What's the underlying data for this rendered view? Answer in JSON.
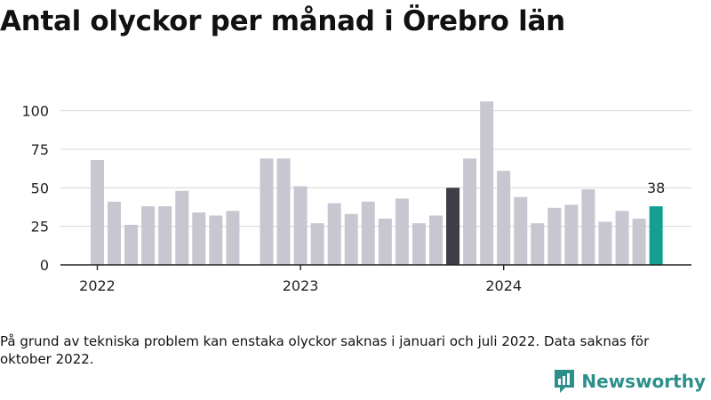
{
  "title": "Antal olyckor per månad i Örebro län",
  "footnote": "På grund av tekniska problem kan enstaka olyckor saknas i januari och juli 2022. Data saknas för oktober 2022.",
  "brand": {
    "name": "Newsworthy",
    "icon": "newsworthy-logo-icon"
  },
  "colors": {
    "default": "#c8c6d0",
    "highlight_dark": "#3e3d48",
    "highlight_latest": "#149f93",
    "grid": "#dddddd",
    "axis": "#222222"
  },
  "chart_data": {
    "type": "bar",
    "title": "Antal olyckor per månad i Örebro län",
    "xlabel": "",
    "ylabel": "",
    "ylim": [
      0,
      110
    ],
    "yticks": [
      0,
      25,
      50,
      75,
      100
    ],
    "xtick_labels": [
      {
        "label": "2022",
        "at": "2022-01"
      },
      {
        "label": "2023",
        "at": "2023-01"
      },
      {
        "label": "2024",
        "at": "2024-01"
      }
    ],
    "grid": true,
    "categories": [
      "2022-01",
      "2022-02",
      "2022-03",
      "2022-04",
      "2022-05",
      "2022-06",
      "2022-07",
      "2022-08",
      "2022-09",
      "2022-10",
      "2022-11",
      "2022-12",
      "2023-01",
      "2023-02",
      "2023-03",
      "2023-04",
      "2023-05",
      "2023-06",
      "2023-07",
      "2023-08",
      "2023-09",
      "2023-10",
      "2023-11",
      "2023-12",
      "2024-01",
      "2024-02",
      "2024-03",
      "2024-04",
      "2024-05",
      "2024-06",
      "2024-07",
      "2024-08",
      "2024-09",
      "2024-10"
    ],
    "values": [
      68,
      41,
      26,
      38,
      38,
      48,
      34,
      32,
      35,
      null,
      69,
      69,
      51,
      27,
      40,
      33,
      41,
      30,
      43,
      27,
      32,
      50,
      69,
      106,
      61,
      44,
      27,
      37,
      39,
      49,
      28,
      35,
      30,
      38
    ],
    "highlights": [
      {
        "category": "2023-10",
        "color": "#3e3d48"
      },
      {
        "category": "2024-10",
        "color": "#149f93",
        "label": "38"
      }
    ]
  }
}
